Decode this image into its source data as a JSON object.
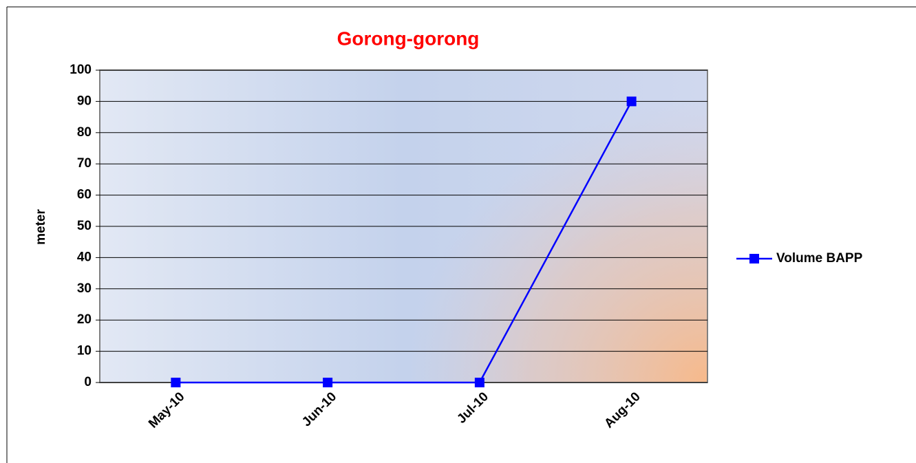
{
  "chart_data": {
    "type": "line",
    "title": "Gorong-gorong",
    "ylabel": "meter",
    "categories": [
      "May-10",
      "Jun-10",
      "Jul-10",
      "Aug-10"
    ],
    "series": [
      {
        "name": "Volume BAPP",
        "color": "#0000ff",
        "values": [
          0,
          0,
          0,
          90
        ]
      }
    ],
    "ylim": [
      0,
      100
    ],
    "yticks": [
      0,
      10,
      20,
      30,
      40,
      50,
      60,
      70,
      80,
      90,
      100
    ],
    "grid": true,
    "legend": "right"
  }
}
